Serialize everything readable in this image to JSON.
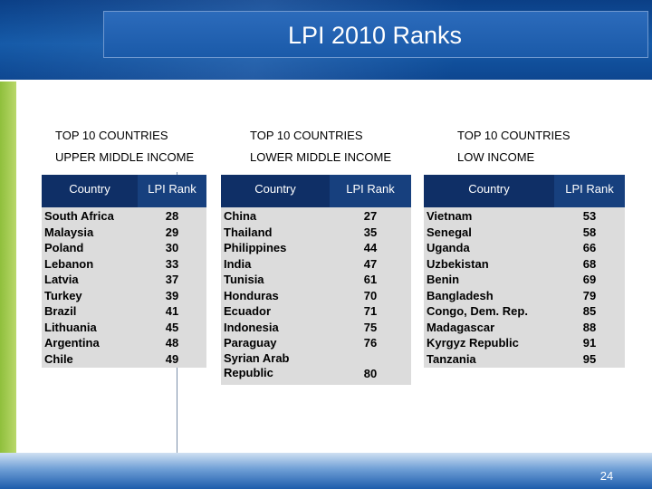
{
  "title": "LPI 2010 Ranks",
  "page_number": "24",
  "colors": {
    "banner": "#155aa8",
    "table_header": "#0f2f66",
    "table_body": "#dcdcdc",
    "accent_green": "#8fbf3c"
  },
  "groups": [
    {
      "line1": "TOP 10 COUNTRIES",
      "line2": "UPPER MIDDLE INCOME",
      "col_country": "Country",
      "col_rank": "LPI Rank",
      "rows": [
        {
          "country": "South Africa",
          "rank": "28"
        },
        {
          "country": "Malaysia",
          "rank": "29"
        },
        {
          "country": "Poland",
          "rank": "30"
        },
        {
          "country": "Lebanon",
          "rank": "33"
        },
        {
          "country": "Latvia",
          "rank": "37"
        },
        {
          "country": "Turkey",
          "rank": "39"
        },
        {
          "country": "Brazil",
          "rank": "41"
        },
        {
          "country": "Lithuania",
          "rank": "45"
        },
        {
          "country": "Argentina",
          "rank": "48"
        },
        {
          "country": "Chile",
          "rank": "49"
        }
      ]
    },
    {
      "line1": "TOP 10 COUNTRIES",
      "line2": "LOWER MIDDLE INCOME",
      "col_country": "Country",
      "col_rank": "LPI Rank",
      "rows": [
        {
          "country": "China",
          "rank": "27"
        },
        {
          "country": "Thailand",
          "rank": "35"
        },
        {
          "country": "Philippines",
          "rank": "44"
        },
        {
          "country": "India",
          "rank": "47"
        },
        {
          "country": "Tunisia",
          "rank": "61"
        },
        {
          "country": "Honduras",
          "rank": "70"
        },
        {
          "country": "Ecuador",
          "rank": "71"
        },
        {
          "country": "Indonesia",
          "rank": "75"
        },
        {
          "country": "Paraguay",
          "rank": "76"
        },
        {
          "country": "Syrian Arab Republic",
          "rank": "80"
        }
      ]
    },
    {
      "line1": "TOP 10 COUNTRIES",
      "line2": "LOW INCOME",
      "col_country": "Country",
      "col_rank": "LPI Rank",
      "rows": [
        {
          "country": "Vietnam",
          "rank": "53"
        },
        {
          "country": "Senegal",
          "rank": "58"
        },
        {
          "country": "Uganda",
          "rank": "66"
        },
        {
          "country": "Uzbekistan",
          "rank": "68"
        },
        {
          "country": "Benin",
          "rank": "69"
        },
        {
          "country": "Bangladesh",
          "rank": "79"
        },
        {
          "country": "Congo, Dem. Rep.",
          "rank": "85"
        },
        {
          "country": "Madagascar",
          "rank": "88"
        },
        {
          "country": "Kyrgyz Republic",
          "rank": "91"
        },
        {
          "country": "Tanzania",
          "rank": "95"
        }
      ]
    }
  ]
}
